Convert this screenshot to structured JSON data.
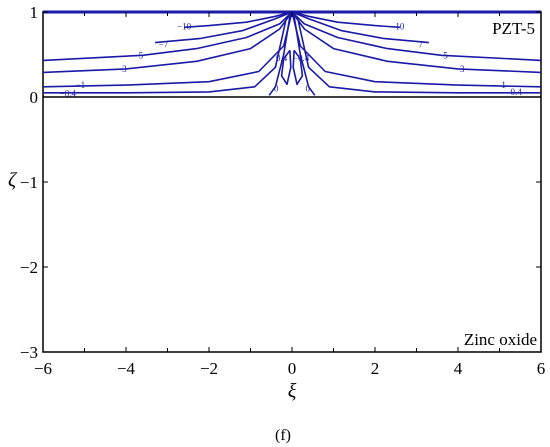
{
  "chart_data": {
    "type": "line",
    "title": "",
    "caption": "(f)",
    "xlabel": "ξ",
    "ylabel": "ζ",
    "xlim": [
      -6,
      6
    ],
    "ylim": [
      -3,
      1
    ],
    "xticks": [
      "−6",
      "−4",
      "−2",
      "0",
      "2",
      "4",
      "6"
    ],
    "yticks": [
      "1",
      "0",
      "−1",
      "−2",
      "−3"
    ],
    "regions": [
      {
        "name": "PZT-5",
        "zeta_range": [
          0,
          1
        ]
      },
      {
        "name": "Zinc oxide",
        "zeta_range": [
          -3,
          0
        ]
      }
    ],
    "contour_levels": [
      -10,
      -7,
      -5,
      -3,
      -1,
      -0.4,
      0,
      0.4,
      10,
      7,
      5,
      3,
      1,
      0.4
    ],
    "contour_level_labels": [
      "−10",
      "−7",
      "−5",
      "−3",
      "−1",
      "−0.4",
      "0",
      "0.4",
      "10",
      "7",
      "5",
      "3",
      "1",
      "0.4"
    ],
    "contours": [
      {
        "level": -10,
        "points": [
          [
            0,
            1
          ],
          [
            -0.4,
            0.95
          ],
          [
            -1.1,
            0.88
          ],
          [
            -2.0,
            0.84
          ],
          [
            -2.6,
            0.82
          ]
        ]
      },
      {
        "level": -7,
        "points": [
          [
            0,
            1
          ],
          [
            -0.4,
            0.92
          ],
          [
            -1.2,
            0.78
          ],
          [
            -2.2,
            0.69
          ],
          [
            -3.3,
            0.64
          ]
        ]
      },
      {
        "level": -5,
        "points": [
          [
            0,
            1
          ],
          [
            -0.3,
            0.86
          ],
          [
            -1.1,
            0.7
          ],
          [
            -2.3,
            0.57
          ],
          [
            -3.6,
            0.49
          ],
          [
            -6,
            0.43
          ]
        ]
      },
      {
        "level": -3,
        "points": [
          [
            0,
            1
          ],
          [
            -0.3,
            0.8
          ],
          [
            -1.0,
            0.57
          ],
          [
            -2.3,
            0.42
          ],
          [
            -4.0,
            0.33
          ],
          [
            -6,
            0.29
          ]
        ]
      },
      {
        "level": -1,
        "points": [
          [
            0,
            1
          ],
          [
            -0.2,
            0.6
          ],
          [
            -0.8,
            0.3
          ],
          [
            -2.0,
            0.18
          ],
          [
            -4.0,
            0.14
          ],
          [
            -6,
            0.12
          ]
        ]
      },
      {
        "level": -0.4,
        "points": [
          [
            -0.15,
            0.9
          ],
          [
            -0.4,
            0.35
          ],
          [
            -0.9,
            0.12
          ],
          [
            -2.0,
            0.06
          ],
          [
            -4.0,
            0.05
          ],
          [
            -6,
            0.05
          ]
        ]
      },
      {
        "level": 0,
        "points": [
          [
            -0.05,
            0.95
          ],
          [
            -0.2,
            0.5
          ],
          [
            -0.4,
            0.12
          ],
          [
            -0.55,
            0.02
          ]
        ]
      },
      {
        "level": 0.4,
        "points": [
          [
            -0.05,
            0.55
          ],
          [
            -0.2,
            0.45
          ],
          [
            -0.25,
            0.25
          ],
          [
            -0.12,
            0.15
          ],
          [
            -0.03,
            0.35
          ],
          [
            -0.05,
            0.55
          ]
        ]
      },
      {
        "level": 10,
        "points": [
          [
            0,
            1
          ],
          [
            0.4,
            0.95
          ],
          [
            1.1,
            0.88
          ],
          [
            2.0,
            0.84
          ],
          [
            2.6,
            0.82
          ]
        ]
      },
      {
        "level": 7,
        "points": [
          [
            0,
            1
          ],
          [
            0.4,
            0.92
          ],
          [
            1.2,
            0.78
          ],
          [
            2.2,
            0.69
          ],
          [
            3.3,
            0.64
          ]
        ]
      },
      {
        "level": 5,
        "points": [
          [
            0,
            1
          ],
          [
            0.3,
            0.86
          ],
          [
            1.1,
            0.7
          ],
          [
            2.3,
            0.57
          ],
          [
            3.6,
            0.49
          ],
          [
            6,
            0.43
          ]
        ]
      },
      {
        "level": 3,
        "points": [
          [
            0,
            1
          ],
          [
            0.3,
            0.8
          ],
          [
            1.0,
            0.57
          ],
          [
            2.3,
            0.42
          ],
          [
            4.0,
            0.33
          ],
          [
            6,
            0.29
          ]
        ]
      },
      {
        "level": 1,
        "points": [
          [
            0,
            1
          ],
          [
            0.2,
            0.6
          ],
          [
            0.8,
            0.3
          ],
          [
            2.0,
            0.18
          ],
          [
            4.0,
            0.14
          ],
          [
            6,
            0.12
          ]
        ]
      },
      {
        "level": 0.4,
        "points": [
          [
            0.15,
            0.9
          ],
          [
            0.4,
            0.35
          ],
          [
            0.9,
            0.12
          ],
          [
            2.0,
            0.06
          ],
          [
            4.0,
            0.05
          ],
          [
            6,
            0.05
          ]
        ]
      },
      {
        "level": 0,
        "points": [
          [
            0.05,
            0.95
          ],
          [
            0.2,
            0.5
          ],
          [
            0.4,
            0.12
          ],
          [
            0.55,
            0.02
          ]
        ]
      },
      {
        "level": -0.4,
        "points": [
          [
            0.05,
            0.55
          ],
          [
            0.2,
            0.45
          ],
          [
            0.25,
            0.25
          ],
          [
            0.12,
            0.15
          ],
          [
            0.03,
            0.35
          ],
          [
            0.05,
            0.55
          ]
        ]
      }
    ],
    "label_positions": [
      {
        "text": "−10",
        "at": [
          -2.6,
          0.83
        ]
      },
      {
        "text": "−7",
        "at": [
          -3.1,
          0.62
        ]
      },
      {
        "text": "−5",
        "at": [
          -3.7,
          0.49
        ]
      },
      {
        "text": "−3",
        "at": [
          -4.1,
          0.33
        ]
      },
      {
        "text": "−1",
        "at": [
          -5.1,
          0.14
        ]
      },
      {
        "text": "−0.4",
        "at": [
          -5.4,
          0.04
        ]
      },
      {
        "text": "0.4",
        "at": [
          -0.25,
          0.46
        ]
      },
      {
        "text": "0",
        "at": [
          -0.38,
          0.1
        ]
      },
      {
        "text": "10",
        "at": [
          2.6,
          0.83
        ]
      },
      {
        "text": "7",
        "at": [
          3.1,
          0.62
        ]
      },
      {
        "text": "5",
        "at": [
          3.7,
          0.49
        ]
      },
      {
        "text": "3",
        "at": [
          4.1,
          0.33
        ]
      },
      {
        "text": "1",
        "at": [
          5.1,
          0.14
        ]
      },
      {
        "text": "0.4",
        "at": [
          5.4,
          0.06
        ]
      },
      {
        "text": "−0.4",
        "at": [
          0.22,
          0.46
        ]
      },
      {
        "text": "0",
        "at": [
          0.38,
          0.1
        ]
      }
    ],
    "grid": false,
    "colors": {
      "contour": "#1a1aa8",
      "axes": "#000000"
    }
  }
}
